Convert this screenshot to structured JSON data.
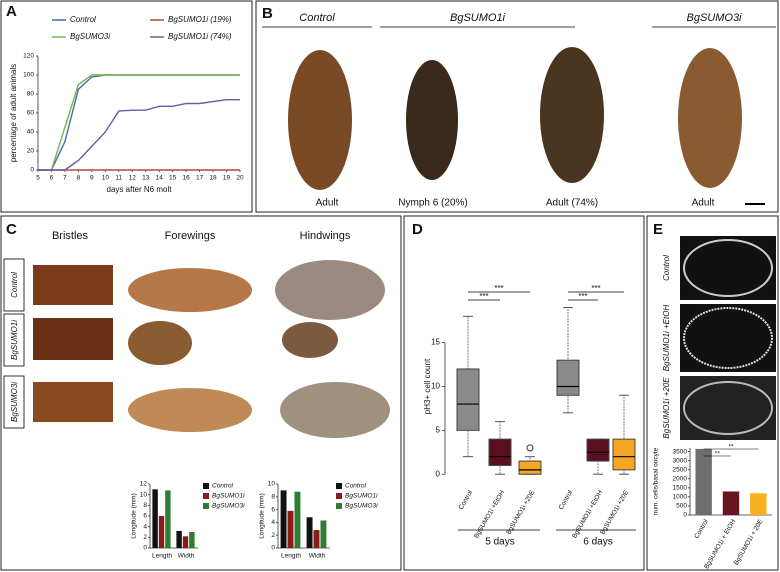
{
  "panel_a": {
    "letter": "A",
    "chart": {
      "type": "line",
      "x": [
        5,
        6,
        7,
        8,
        9,
        10,
        11,
        12,
        13,
        14,
        15,
        16,
        17,
        18,
        19,
        20
      ],
      "xlim": [
        5,
        20
      ],
      "ylim": [
        0,
        120
      ],
      "xticks": [
        5,
        6,
        7,
        8,
        9,
        10,
        11,
        12,
        13,
        14,
        15,
        16,
        17,
        18,
        19,
        20
      ],
      "yticks": [
        0,
        20,
        40,
        60,
        80,
        100,
        120
      ],
      "xlabel": "days after N6 molt",
      "ylabel": "percentage of adult animals",
      "series": [
        {
          "name": "Control",
          "color": "#3b6fb6",
          "values": [
            0,
            0,
            30,
            85,
            98,
            100,
            100,
            100,
            100,
            100,
            100,
            100,
            100,
            100,
            100,
            100
          ]
        },
        {
          "name": "BgSUMO1i (19%)",
          "color": "#b04a3c",
          "values": [
            0,
            0,
            0,
            0,
            0,
            0,
            0,
            0,
            0,
            0,
            0,
            0,
            0,
            0,
            0,
            0
          ]
        },
        {
          "name": "BgSUMO3i",
          "color": "#7bb24a",
          "values": [
            0,
            0,
            45,
            90,
            100,
            100,
            100,
            100,
            100,
            100,
            100,
            100,
            100,
            100,
            100,
            100
          ]
        },
        {
          "name": "BgSUMO1i (74%)",
          "color": "#6a5aa5",
          "values": [
            0,
            0,
            0,
            10,
            25,
            40,
            62,
            63,
            63,
            67,
            67,
            70,
            70,
            72,
            74,
            74
          ]
        }
      ]
    }
  },
  "panel_b": {
    "letter": "B",
    "headers": [
      "Control",
      "BgSUMO1i",
      "BgSUMO3i"
    ],
    "captions": [
      "Adult",
      "Nymph 6 (20%)",
      "Adult (74%)",
      "Adult"
    ]
  },
  "panel_c": {
    "letter": "C",
    "columns": [
      "Bristles",
      "Forewings",
      "Hindwings"
    ],
    "rows": [
      "Control",
      "BgSUMO1i",
      "BgSUMO3i"
    ],
    "charts": [
      {
        "type": "bar",
        "ylabel": "Longitude (mm)",
        "categories": [
          "Length",
          "Width"
        ],
        "ylim": [
          0,
          12
        ],
        "yticks": [
          0,
          2,
          4,
          6,
          8,
          10,
          12
        ],
        "series": [
          {
            "name": "Control",
            "color": "#111111",
            "values": [
              11,
              3.2
            ]
          },
          {
            "name": "BgSUMO1i",
            "color": "#8b1a1a",
            "values": [
              6,
              2.2
            ]
          },
          {
            "name": "BgSUMO3i",
            "color": "#2e7d32",
            "values": [
              10.8,
              3.0
            ]
          }
        ]
      },
      {
        "type": "bar",
        "ylabel": "Longitude (mm)",
        "categories": [
          "Length",
          "Width"
        ],
        "ylim": [
          0,
          10
        ],
        "yticks": [
          0,
          2,
          4,
          6,
          8,
          10
        ],
        "series": [
          {
            "name": "Control",
            "color": "#111111",
            "values": [
              9,
              4.8
            ]
          },
          {
            "name": "BgSUMO1i",
            "color": "#8b1a1a",
            "values": [
              5.8,
              2.8
            ]
          },
          {
            "name": "BgSUMO3i",
            "color": "#2e7d32",
            "values": [
              8.8,
              4.3
            ]
          }
        ]
      }
    ]
  },
  "panel_d": {
    "letter": "D",
    "chart": {
      "type": "box",
      "ylabel": "pH3+ cell count",
      "ylim": [
        -1,
        21
      ],
      "yticks": [
        0,
        5,
        10,
        15
      ],
      "groups": [
        "5 days",
        "6 days"
      ],
      "categories": [
        "Control",
        "BgSUMO1i +EtOH",
        "BgSUMO1i +20E",
        "Control",
        "BgSUMO1i +EtOH",
        "BgSUMO1i +20E"
      ],
      "colors": [
        "#8a8a8a",
        "#5a1020",
        "#f5a623",
        "#8a8a8a",
        "#5a1020",
        "#f5a623"
      ],
      "boxes": [
        {
          "min": 2,
          "q1": 5,
          "median": 8,
          "q3": 12,
          "max": 18
        },
        {
          "min": 0,
          "q1": 1,
          "median": 2,
          "q3": 4,
          "max": 6
        },
        {
          "min": 0,
          "q1": 0,
          "median": 0.5,
          "q3": 1.5,
          "max": 2,
          "outliers": [
            3
          ]
        },
        {
          "min": 7,
          "q1": 9,
          "median": 10,
          "q3": 13,
          "max": 19
        },
        {
          "min": 0,
          "q1": 1.5,
          "median": 2.5,
          "q3": 4,
          "max": 4
        },
        {
          "min": 0,
          "q1": 0.5,
          "median": 2,
          "q3": 4,
          "max": 9
        }
      ],
      "significance": [
        "***",
        "***",
        "***",
        "***"
      ]
    }
  },
  "panel_e": {
    "letter": "E",
    "rows": [
      "Control",
      "BgSUMO1i +EtOH",
      "BgSUMO1i +20E"
    ],
    "chart": {
      "type": "bar",
      "ylabel": "num. cells/basal oocyte",
      "categories": [
        "Control",
        "BgSUMO1i + EtOH",
        "BgSUMO1i + 20E"
      ],
      "values": [
        3650,
        1300,
        1200
      ],
      "colors": [
        "#6e6e6e",
        "#6a1420",
        "#f5b21e"
      ],
      "ylim": [
        0,
        3700
      ],
      "yticks": [
        0,
        500,
        1000,
        1500,
        2000,
        2500,
        3000,
        3500
      ],
      "significance": [
        "**",
        "**"
      ]
    }
  }
}
